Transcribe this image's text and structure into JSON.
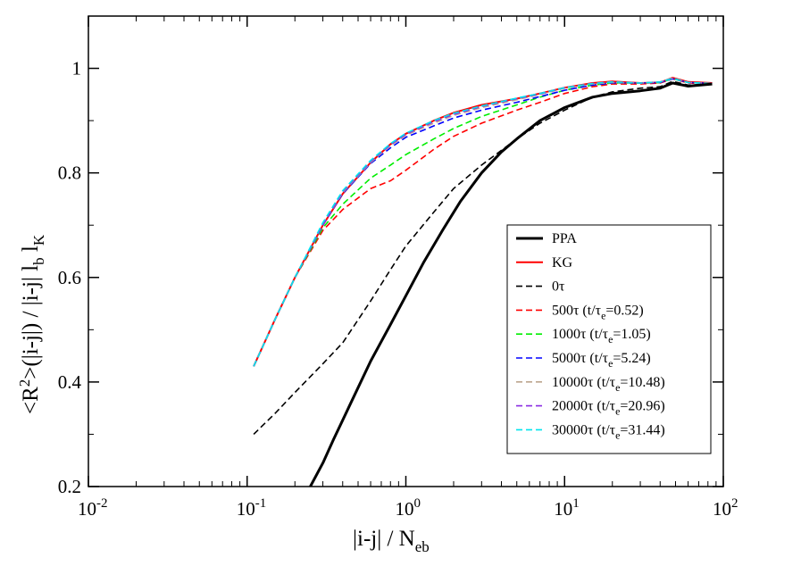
{
  "chart_data": {
    "type": "line",
    "xscale": "log",
    "xlim": [
      0.01,
      100
    ],
    "ylim": [
      0.2,
      1.1
    ],
    "grid": false,
    "legend_position": "lower-right",
    "x_tick_labels": [
      {
        "value": 0.01,
        "base": "10",
        "exp": "-2"
      },
      {
        "value": 0.1,
        "base": "10",
        "exp": "-1"
      },
      {
        "value": 1,
        "base": "10",
        "exp": "0"
      },
      {
        "value": 10,
        "base": "10",
        "exp": "1"
      },
      {
        "value": 100,
        "base": "10",
        "exp": "2"
      }
    ],
    "y_ticks": [
      0.2,
      0.4,
      0.6,
      0.8,
      1.0
    ],
    "y_tick_labels": [
      "0.2",
      "0.4",
      "0.6",
      "0.8",
      "1"
    ],
    "xlabel": {
      "main": "|i-j| / N",
      "sub": "eb"
    },
    "ylabel": {
      "p1": "<R",
      "sup": "2",
      "p2": ">(|i-j|) / |i-j| l",
      "sub1": "b",
      "p3": " l",
      "sub2": "K"
    },
    "series": [
      {
        "name": "PPA",
        "label": "PPA",
        "color": "#000000",
        "dash": "solid",
        "width": 3,
        "x": [
          0.25,
          0.3,
          0.35,
          0.45,
          0.6,
          0.8,
          1.0,
          1.3,
          1.7,
          2.2,
          3.0,
          4.0,
          5.0,
          7.0,
          10,
          15,
          20,
          30,
          40,
          48,
          60,
          85
        ],
        "y": [
          0.2,
          0.245,
          0.29,
          0.36,
          0.44,
          0.51,
          0.565,
          0.63,
          0.69,
          0.745,
          0.8,
          0.84,
          0.865,
          0.9,
          0.925,
          0.945,
          0.952,
          0.957,
          0.962,
          0.972,
          0.966,
          0.97
        ]
      },
      {
        "name": "KG",
        "label": "KG",
        "color": "#ff0000",
        "dash": "solid",
        "width": 2,
        "x": [
          0.11,
          0.15,
          0.2,
          0.3,
          0.4,
          0.6,
          0.8,
          1.0,
          1.5,
          2.0,
          3.0,
          5.0,
          7.0,
          10,
          15,
          20,
          30,
          40,
          48,
          60,
          85
        ],
        "y": [
          0.43,
          0.52,
          0.6,
          0.7,
          0.76,
          0.82,
          0.855,
          0.875,
          0.9,
          0.915,
          0.93,
          0.942,
          0.952,
          0.963,
          0.972,
          0.975,
          0.972,
          0.973,
          0.982,
          0.974,
          0.972
        ]
      },
      {
        "name": "0tau",
        "label": "0τ",
        "color": "#000000",
        "dash": "dashed",
        "width": 1.6,
        "x": [
          0.11,
          0.15,
          0.2,
          0.3,
          0.4,
          0.6,
          0.8,
          1.0,
          1.5,
          2.0,
          3.0,
          5.0,
          7.0,
          10,
          15,
          20,
          30,
          40,
          48,
          60,
          85
        ],
        "y": [
          0.3,
          0.34,
          0.38,
          0.435,
          0.475,
          0.555,
          0.615,
          0.66,
          0.725,
          0.77,
          0.815,
          0.865,
          0.895,
          0.92,
          0.945,
          0.955,
          0.962,
          0.965,
          0.975,
          0.968,
          0.97
        ]
      },
      {
        "name": "500tau",
        "label": "500τ (t/τ",
        "sub": "e",
        "label_end": "=0.52)",
        "color": "#ff0000",
        "dash": "dashed",
        "width": 1.6,
        "x": [
          0.11,
          0.15,
          0.2,
          0.3,
          0.4,
          0.6,
          0.8,
          1.0,
          1.5,
          2.0,
          3.0,
          5.0,
          7.0,
          10,
          15,
          20,
          30,
          40,
          48,
          60,
          85
        ],
        "y": [
          0.43,
          0.52,
          0.6,
          0.69,
          0.73,
          0.77,
          0.785,
          0.805,
          0.845,
          0.87,
          0.895,
          0.92,
          0.935,
          0.952,
          0.965,
          0.97,
          0.97,
          0.972,
          0.98,
          0.972,
          0.97
        ]
      },
      {
        "name": "1000tau",
        "label": "1000τ (t/τ",
        "sub": "e",
        "label_end": "=1.05)",
        "color": "#00ee00",
        "dash": "dashed",
        "width": 1.6,
        "x": [
          0.11,
          0.15,
          0.2,
          0.3,
          0.4,
          0.6,
          0.8,
          1.0,
          1.5,
          2.0,
          3.0,
          5.0,
          7.0,
          10,
          15,
          20,
          30,
          40,
          48,
          60,
          85
        ],
        "y": [
          0.43,
          0.52,
          0.6,
          0.695,
          0.74,
          0.79,
          0.815,
          0.835,
          0.865,
          0.885,
          0.908,
          0.93,
          0.945,
          0.958,
          0.968,
          0.972,
          0.972,
          0.973,
          0.98,
          0.973,
          0.971
        ]
      },
      {
        "name": "5000tau",
        "label": "5000τ (t/τ",
        "sub": "e",
        "label_end": "=5.24)",
        "color": "#0000ff",
        "dash": "dashed",
        "width": 1.6,
        "x": [
          0.11,
          0.15,
          0.2,
          0.3,
          0.4,
          0.6,
          0.8,
          1.0,
          1.5,
          2.0,
          3.0,
          5.0,
          7.0,
          10,
          15,
          20,
          30,
          40,
          48,
          60,
          85
        ],
        "y": [
          0.43,
          0.52,
          0.6,
          0.7,
          0.76,
          0.818,
          0.848,
          0.868,
          0.89,
          0.905,
          0.92,
          0.935,
          0.946,
          0.958,
          0.968,
          0.972,
          0.972,
          0.973,
          0.98,
          0.973,
          0.971
        ]
      },
      {
        "name": "10000tau",
        "label": "10000τ (t/τ",
        "sub": "e",
        "label_end": "=10.48)",
        "color": "#bca58e",
        "dash": "dashed",
        "width": 1.6,
        "x": [
          0.11,
          0.15,
          0.2,
          0.3,
          0.4,
          0.6,
          0.8,
          1.0,
          1.5,
          2.0,
          3.0,
          5.0,
          7.0,
          10,
          15,
          20,
          30,
          40,
          48,
          60,
          85
        ],
        "y": [
          0.43,
          0.52,
          0.6,
          0.7,
          0.762,
          0.82,
          0.852,
          0.872,
          0.895,
          0.91,
          0.925,
          0.94,
          0.95,
          0.962,
          0.97,
          0.973,
          0.972,
          0.974,
          0.981,
          0.973,
          0.971
        ]
      },
      {
        "name": "20000tau",
        "label": "20000τ (t/τ",
        "sub": "e",
        "label_end": "=20.96)",
        "color": "#8a2be2",
        "dash": "dashed",
        "width": 1.6,
        "x": [
          0.11,
          0.15,
          0.2,
          0.3,
          0.4,
          0.6,
          0.8,
          1.0,
          1.5,
          2.0,
          3.0,
          5.0,
          7.0,
          10,
          15,
          20,
          30,
          40,
          48,
          60,
          85
        ],
        "y": [
          0.43,
          0.52,
          0.6,
          0.7,
          0.764,
          0.822,
          0.854,
          0.874,
          0.898,
          0.912,
          0.927,
          0.942,
          0.951,
          0.963,
          0.971,
          0.974,
          0.972,
          0.974,
          0.981,
          0.973,
          0.971
        ]
      },
      {
        "name": "30000tau",
        "label": "30000τ (t/τ",
        "sub": "e",
        "label_end": "=31.44)",
        "color": "#00e5ee",
        "dash": "dashed",
        "width": 1.6,
        "x": [
          0.11,
          0.15,
          0.2,
          0.3,
          0.4,
          0.6,
          0.8,
          1.0,
          1.5,
          2.0,
          3.0,
          5.0,
          7.0,
          10,
          15,
          20,
          30,
          40,
          48,
          60,
          85
        ],
        "y": [
          0.43,
          0.52,
          0.6,
          0.705,
          0.766,
          0.824,
          0.856,
          0.876,
          0.9,
          0.914,
          0.928,
          0.943,
          0.952,
          0.963,
          0.971,
          0.974,
          0.972,
          0.974,
          0.981,
          0.973,
          0.971
        ]
      }
    ]
  }
}
